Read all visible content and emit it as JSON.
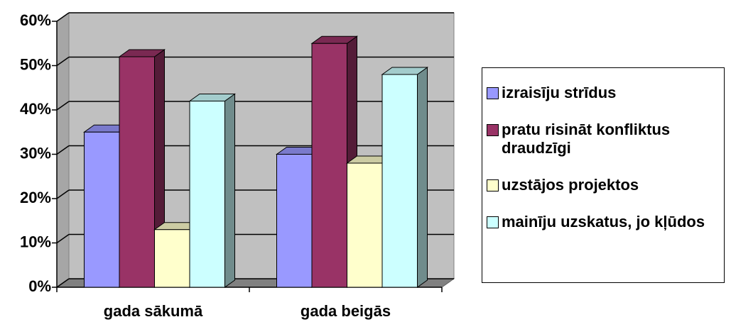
{
  "chart_data": {
    "type": "bar3d",
    "categories": [
      "gada sākumā",
      "gada beigās"
    ],
    "series": [
      {
        "name": "izraisīju strīdus",
        "color": "#9999ff",
        "values": [
          35,
          30
        ]
      },
      {
        "name": "pratu risināt konfliktus draudzīgi",
        "color": "#993366",
        "values": [
          52,
          55
        ]
      },
      {
        "name": "uzstājos projektos",
        "color": "#ffffcc",
        "values": [
          13,
          28
        ]
      },
      {
        "name": "mainīju uzskatus, jo kļūdos",
        "color": "#ccffff",
        "values": [
          42,
          48
        ]
      }
    ],
    "ylim": [
      0,
      60
    ],
    "yticks": [
      {
        "value": 0,
        "label": "0%"
      },
      {
        "value": 10,
        "label": "10%"
      },
      {
        "value": 20,
        "label": "20%"
      },
      {
        "value": 30,
        "label": "30%"
      },
      {
        "value": 40,
        "label": "40%"
      },
      {
        "value": 50,
        "label": "50%"
      },
      {
        "value": 60,
        "label": "60%"
      }
    ],
    "grid": true,
    "legend": "right"
  }
}
